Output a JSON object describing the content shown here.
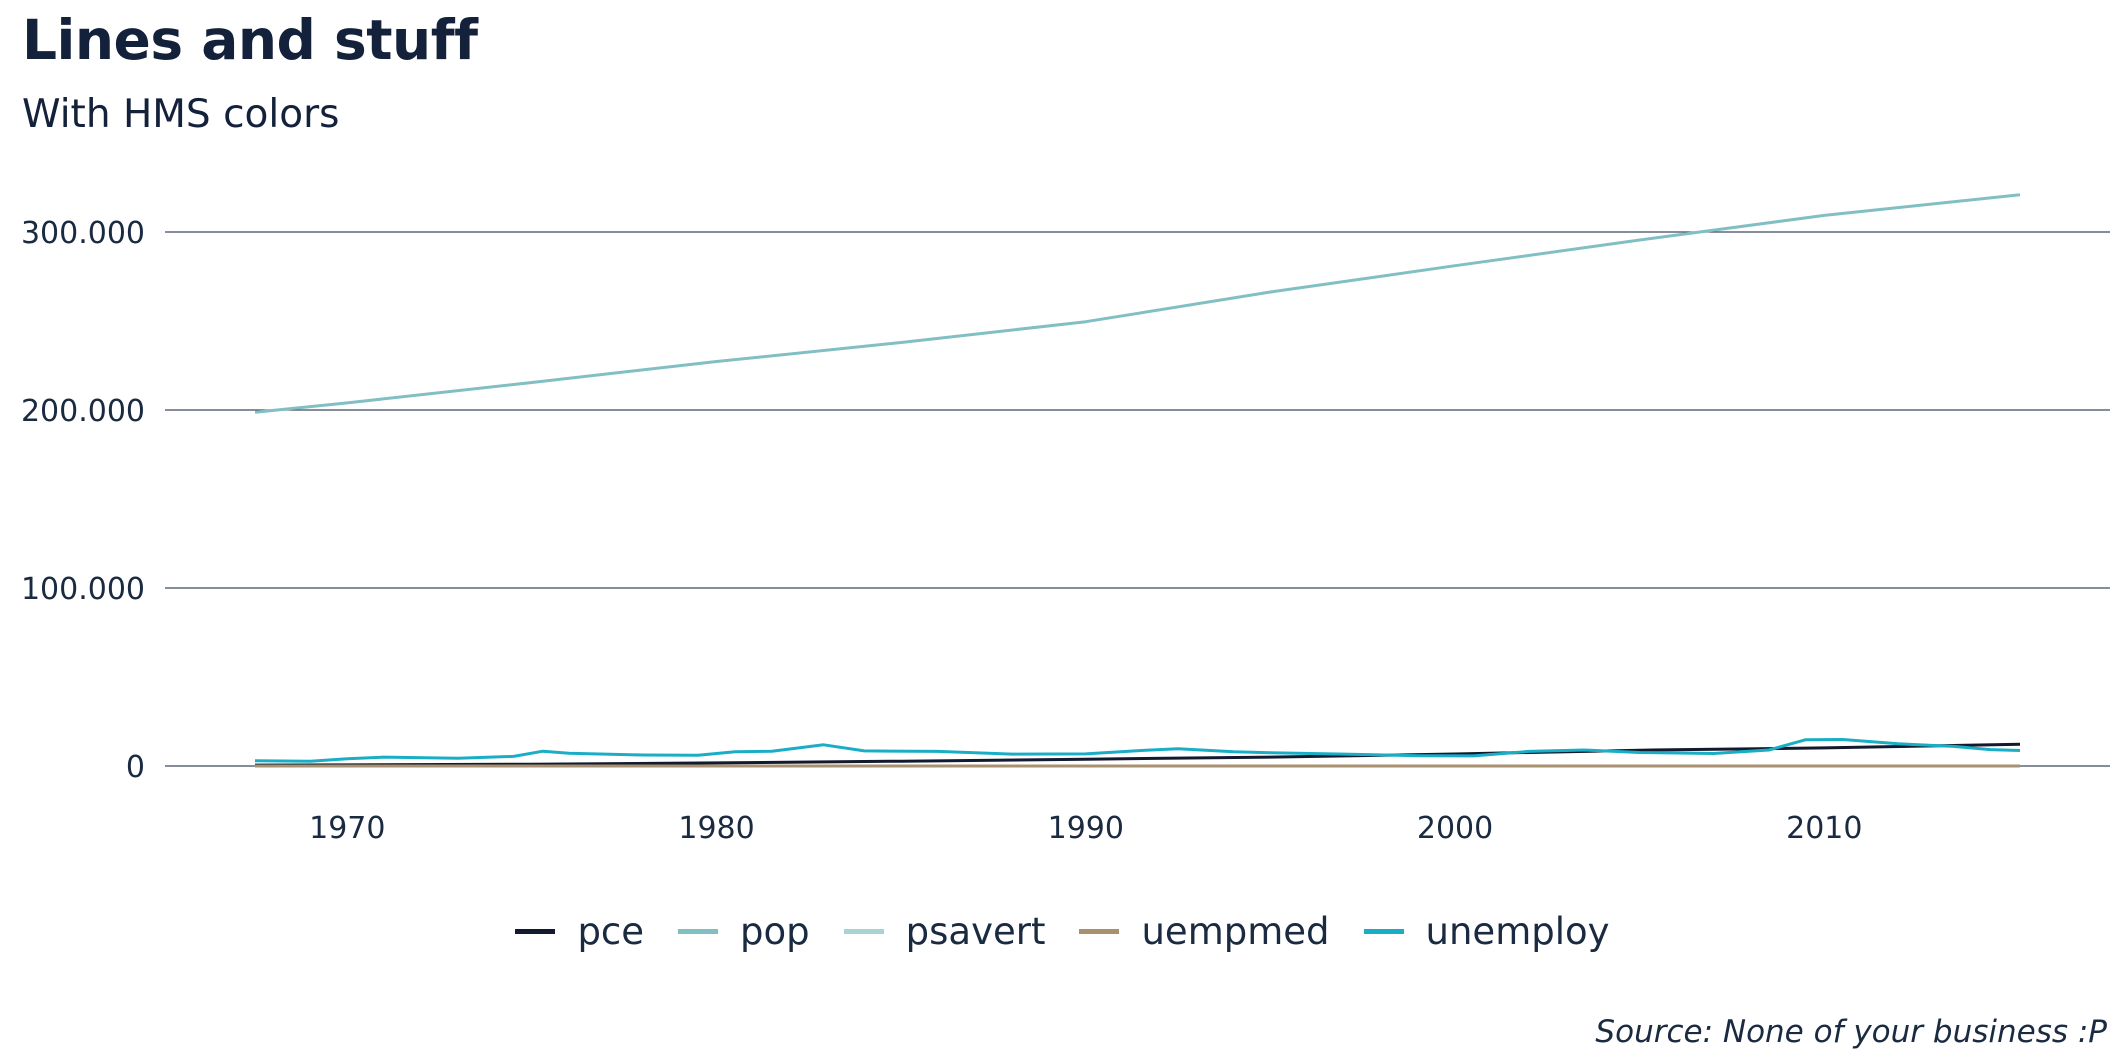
{
  "chart_data": {
    "type": "line",
    "title": "Lines and stuff",
    "subtitle": "With HMS colors",
    "caption": "Source: None of your business :P",
    "xlabel": "",
    "ylabel": "",
    "xlim": [
      1967.5,
      2015.3
    ],
    "ylim": [
      0,
      320000
    ],
    "x_ticks": [
      1970,
      1980,
      1990,
      2000,
      2010
    ],
    "y_ticks": [
      0,
      100000,
      200000,
      300000
    ],
    "y_tick_labels": [
      "0",
      "100.000",
      "200.000",
      "300.000"
    ],
    "grid": "horizontal",
    "legend_position": "bottom",
    "series": [
      {
        "name": "pce",
        "color": "#111a2e",
        "x": [
          1967.5,
          1970,
          1975,
          1980,
          1985,
          1990,
          1995,
          2000,
          2005,
          2010,
          2015.3
        ],
        "y": [
          507,
          640,
          1010,
          1740,
          2670,
          3820,
          4990,
          6760,
          8880,
          10150,
          12190
        ]
      },
      {
        "name": "pop",
        "color": "#82bfc3",
        "x": [
          1967.5,
          1970,
          1975,
          1980,
          1985,
          1990,
          1995,
          2000,
          2005,
          2010,
          2015.3
        ],
        "y": [
          198712,
          203984,
          215465,
          227225,
          237924,
          249623,
          266278,
          281083,
          295517,
          309327,
          320887
        ]
      },
      {
        "name": "psavert",
        "color": "#a8d3d5",
        "x": [
          1967.5,
          1970,
          1975,
          1980,
          1985,
          1990,
          1995,
          2000,
          2005,
          2010,
          2015.3
        ],
        "y": [
          12.6,
          12.6,
          13.7,
          9.9,
          9.0,
          8.0,
          6.4,
          4.2,
          2.6,
          5.6,
          7.6
        ]
      },
      {
        "name": "uempmed",
        "color": "#a89070",
        "x": [
          1967.5,
          1970,
          1975,
          1980,
          1985,
          1990,
          1995,
          2000,
          2005,
          2010,
          2015.3
        ],
        "y": [
          4.5,
          4.6,
          8.2,
          6.6,
          6.9,
          5.3,
          8.3,
          5.8,
          9.0,
          21.0,
          11.2
        ]
      },
      {
        "name": "unemploy",
        "color": "#1aaec6",
        "x": [
          1967.5,
          1969,
          1970,
          1971,
          1973,
          1974.5,
          1975.3,
          1976,
          1978,
          1979.5,
          1980.5,
          1981.5,
          1982.9,
          1984,
          1986,
          1988,
          1990,
          1991.5,
          1992.5,
          1994,
          1995,
          1997,
          1999,
          2000.5,
          2002,
          2003.5,
          2005,
          2007,
          2008.5,
          2009.5,
          2010.5,
          2012,
          2013.5,
          2014.5,
          2015.3
        ],
        "y": [
          2944,
          2700,
          4100,
          5000,
          4300,
          5400,
          8300,
          7200,
          6200,
          6000,
          8000,
          8300,
          11900,
          8500,
          8200,
          6700,
          6800,
          8700,
          9700,
          8000,
          7400,
          6700,
          5800,
          5700,
          8200,
          9000,
          7600,
          7000,
          9000,
          14800,
          14900,
          12500,
          11000,
          9200,
          8700
        ]
      }
    ]
  }
}
